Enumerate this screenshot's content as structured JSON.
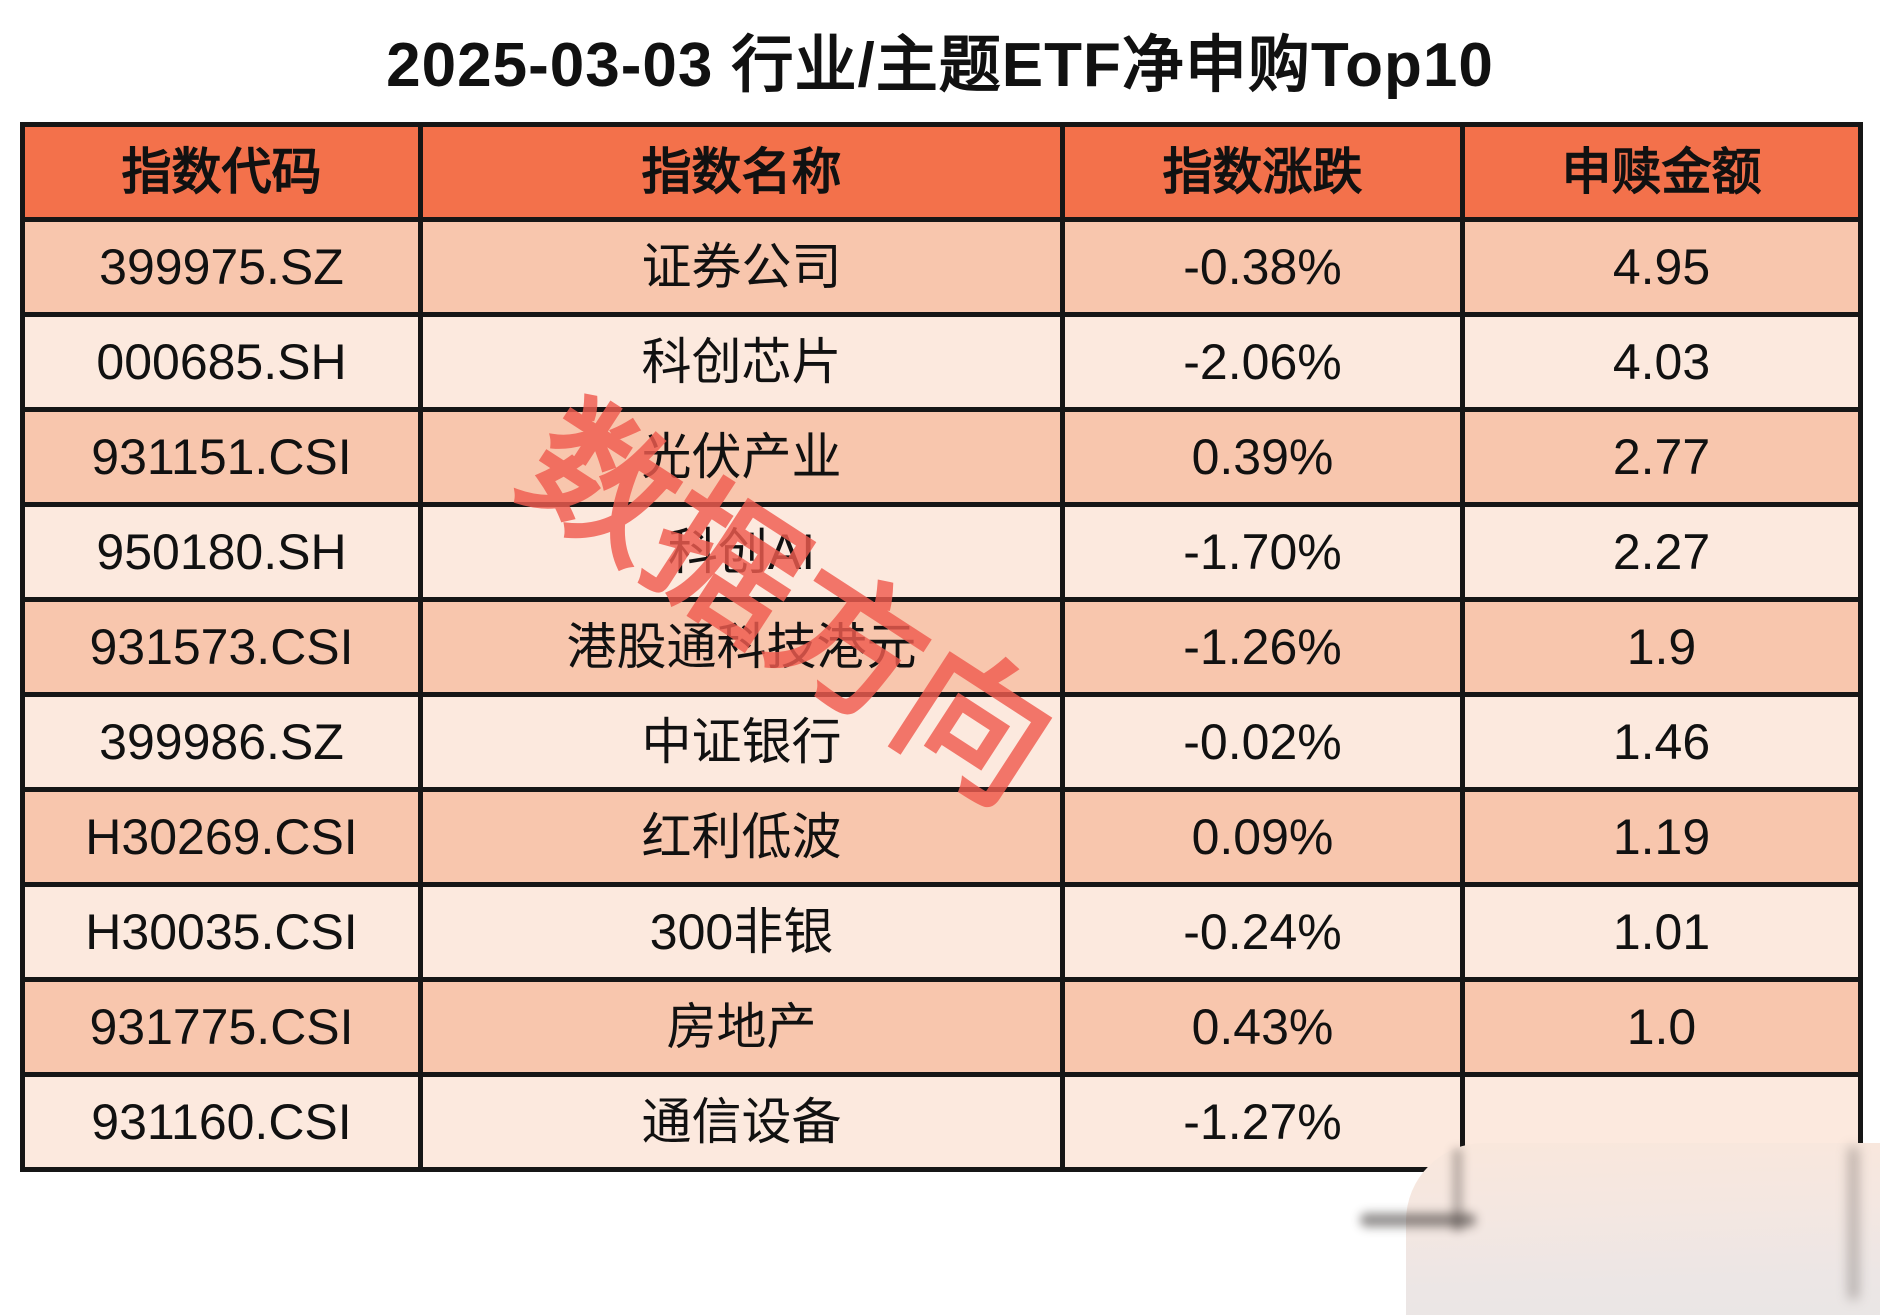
{
  "title": "2025-03-03 行业/主题ETF净申购Top10",
  "watermark": "数据方向",
  "table": {
    "columns": [
      "指数代码",
      "指数名称",
      "指数涨跌",
      "申赎金额"
    ],
    "rows": [
      {
        "code": "399975.SZ",
        "name": "证券公司",
        "change": "-0.38%",
        "amount": "4.95"
      },
      {
        "code": "000685.SH",
        "name": "科创芯片",
        "change": "-2.06%",
        "amount": "4.03"
      },
      {
        "code": "931151.CSI",
        "name": "光伏产业",
        "change": "0.39%",
        "amount": "2.77"
      },
      {
        "code": "950180.SH",
        "name": "科创AI",
        "change": "-1.70%",
        "amount": "2.27"
      },
      {
        "code": "931573.CSI",
        "name": "港股通科技港元",
        "change": "-1.26%",
        "amount": "1.9"
      },
      {
        "code": "399986.SZ",
        "name": "中证银行",
        "change": "-0.02%",
        "amount": "1.46"
      },
      {
        "code": "H30269.CSI",
        "name": "红利低波",
        "change": "0.09%",
        "amount": "1.19"
      },
      {
        "code": "H30035.CSI",
        "name": "300非银",
        "change": "-0.24%",
        "amount": "1.01"
      },
      {
        "code": "931775.CSI",
        "name": "房地产",
        "change": "0.43%",
        "amount": "1.0"
      },
      {
        "code": "931160.CSI",
        "name": "通信设备",
        "change": "-1.27%",
        "amount": ""
      }
    ]
  },
  "colors": {
    "page_bg": "#ffffff",
    "header_bg": "#f3714b",
    "row_dark": "#f8c6ad",
    "row_light": "#fce9de",
    "border": "#161616",
    "text": "#111111",
    "watermark": "#f05c50",
    "smudge_top": "#f9e7dc",
    "smudge_bottom": "#eae6e5"
  }
}
